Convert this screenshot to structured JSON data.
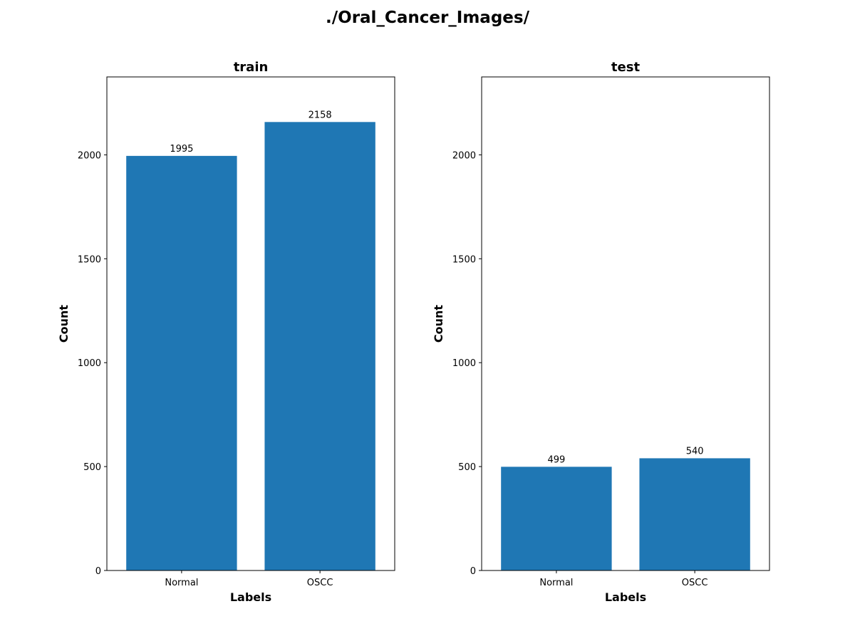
{
  "figure": {
    "title": "./Oral_Cancer_Images/"
  },
  "colors": {
    "bar": "#1f77b4",
    "axes": "#000000",
    "background": "#ffffff"
  },
  "chart_data": [
    {
      "type": "bar",
      "title": "train",
      "xlabel": "Labels",
      "ylabel": "Count",
      "categories": [
        "Normal",
        "OSCC"
      ],
      "values": [
        1995,
        2158
      ],
      "ylim": [
        0,
        2375
      ],
      "yticks": [
        0,
        500,
        1000,
        1500,
        2000
      ],
      "grid": false
    },
    {
      "type": "bar",
      "title": "test",
      "xlabel": "Labels",
      "ylabel": "Count",
      "categories": [
        "Normal",
        "OSCC"
      ],
      "values": [
        499,
        540
      ],
      "ylim": [
        0,
        2375
      ],
      "yticks": [
        0,
        500,
        1000,
        1500,
        2000
      ],
      "grid": false
    }
  ]
}
